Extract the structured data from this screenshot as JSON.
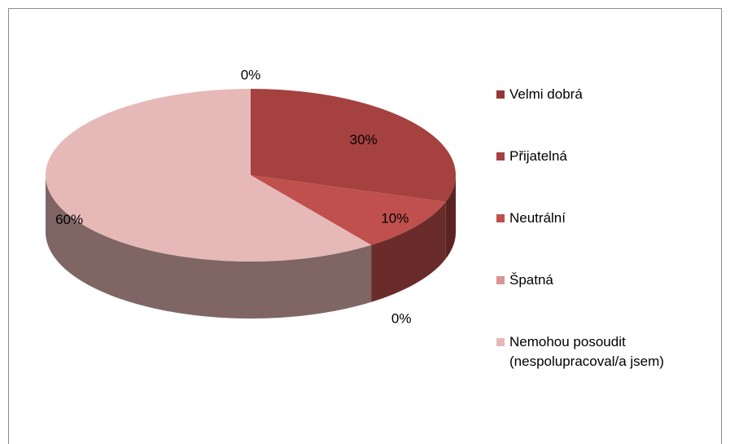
{
  "chart_data": {
    "type": "pie",
    "categories": [
      "Velmi dobrá",
      "Přijatelná",
      "Neutrální",
      "Špatná",
      "Nemohou posoudit (nespolupracoval/a jsem)"
    ],
    "values": [
      0,
      30,
      10,
      0,
      60
    ],
    "value_labels": [
      "0%",
      "30%",
      "10%",
      "0%",
      "60%"
    ],
    "colors": [
      "#953735",
      "#a5413f",
      "#c0504d",
      "#d99694",
      "#e6b9b8"
    ],
    "legend": "right"
  }
}
